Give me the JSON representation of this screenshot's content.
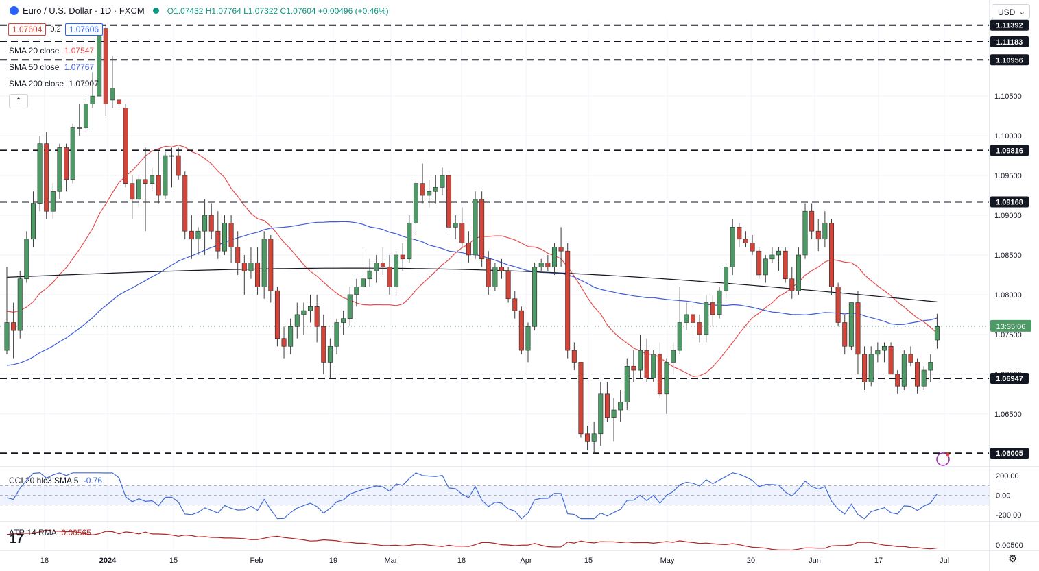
{
  "header": {
    "symbol_title": "Euro / U.S. Dollar · 1D · FXCM",
    "ohlc": "O1.07432 H1.07764 L1.07322 C1.07604 +0.00496 (+0.46%)",
    "bid": "1.07604",
    "spread": "0.2",
    "ask": "1.07606"
  },
  "legend": {
    "sma20_label": "SMA 20 close",
    "sma20_value": "1.07547",
    "sma50_label": "SMA 50 close",
    "sma50_value": "1.07767",
    "sma200_label": "SMA 200 close",
    "sma200_value": "1.07907",
    "collapse_icon": "chevron-up-icon"
  },
  "currency_selector": {
    "value": "USD"
  },
  "countdown": "13:35:06",
  "cci": {
    "label": "CCI 20 hlc3 SMA 5",
    "value": "-0.76",
    "ticks": [
      "200.00",
      "0.00",
      "-200.00"
    ]
  },
  "atr": {
    "label": "ATR 14 RMA",
    "value": "0.00565",
    "tick": "0.00500"
  },
  "colors": {
    "up": "#4e9a66",
    "down": "#d1453b",
    "sma20": "#e74c4c",
    "sma50": "#3b5bdb",
    "sma200": "#131722",
    "level": "#131722",
    "cci": "#3f6ad8",
    "atr": "#b22222"
  },
  "chart_data": {
    "type": "candlestick",
    "symbol": "EUR/USD",
    "timeframe": "1D",
    "ylim": [
      1.0586,
      1.1145
    ],
    "y_ticks": [
      "1.10500",
      "1.10000",
      "1.09500",
      "1.09000",
      "1.08500",
      "1.08000",
      "1.07500",
      "1.07000",
      "1.06500"
    ],
    "x_ticks": [
      "18",
      "2024",
      "15",
      "Feb",
      "19",
      "Mar",
      "18",
      "Apr",
      "15",
      "May",
      "20",
      "Jun",
      "17",
      "Jul"
    ],
    "horizontal_levels": [
      1.11392,
      1.11183,
      1.10956,
      1.09816,
      1.09168,
      1.06947,
      1.06005
    ],
    "level_labels": [
      "1.11392",
      "1.11183",
      "1.10956",
      "1.09816",
      "1.09168",
      "1.06947",
      "1.06005"
    ],
    "last_close": 1.07604,
    "candles": [
      [
        1.073,
        1.0835,
        1.0725,
        1.0765
      ],
      [
        1.0765,
        1.079,
        1.072,
        1.0755
      ],
      [
        1.0755,
        1.083,
        1.0745,
        1.082
      ],
      [
        1.082,
        1.088,
        1.0815,
        1.087
      ],
      [
        1.087,
        1.093,
        1.086,
        1.0915
      ],
      [
        1.0915,
        1.1,
        1.0905,
        1.099
      ],
      [
        1.099,
        1.1005,
        1.0895,
        1.0905
      ],
      [
        1.0905,
        1.094,
        1.0895,
        1.093
      ],
      [
        1.093,
        1.099,
        1.092,
        1.0985
      ],
      [
        1.0985,
        1.099,
        1.093,
        1.0945
      ],
      [
        1.0945,
        1.1015,
        1.094,
        1.101
      ],
      [
        1.101,
        1.104,
        1.1,
        1.101
      ],
      [
        1.101,
        1.105,
        1.1005,
        1.104
      ],
      [
        1.104,
        1.108,
        1.1035,
        1.105
      ],
      [
        1.105,
        1.114,
        1.105,
        1.1135
      ],
      [
        1.1135,
        1.114,
        1.1025,
        1.104
      ],
      [
        1.1045,
        1.11,
        1.1035,
        1.106
      ],
      [
        1.1045,
        1.1045,
        1.1035,
        1.104
      ],
      [
        1.1035,
        1.104,
        1.0935,
        1.094
      ],
      [
        1.094,
        1.095,
        1.0895,
        1.092
      ],
      [
        1.092,
        1.095,
        1.091,
        1.0945
      ],
      [
        1.0945,
        1.0985,
        1.088,
        1.094
      ],
      [
        1.094,
        1.096,
        1.093,
        1.095
      ],
      [
        1.095,
        1.098,
        1.0915,
        1.0925
      ],
      [
        1.0925,
        1.098,
        1.092,
        1.0975
      ],
      [
        1.0975,
        1.0985,
        1.0935,
        1.0975
      ],
      [
        1.0975,
        1.0985,
        1.0945,
        1.095
      ],
      [
        1.095,
        1.0955,
        1.087,
        1.088
      ],
      [
        1.088,
        1.09,
        1.0845,
        1.087
      ],
      [
        1.087,
        1.0885,
        1.085,
        1.088
      ],
      [
        1.088,
        1.092,
        1.085,
        1.09
      ],
      [
        1.09,
        1.0915,
        1.087,
        1.088
      ],
      [
        1.088,
        1.0905,
        1.0845,
        1.0855
      ],
      [
        1.0855,
        1.09,
        1.085,
        1.089
      ],
      [
        1.089,
        1.09,
        1.084,
        1.086
      ],
      [
        1.086,
        1.088,
        1.0825,
        1.084
      ],
      [
        1.084,
        1.085,
        1.08,
        1.083
      ],
      [
        1.083,
        1.086,
        1.082,
        1.084
      ],
      [
        1.084,
        1.086,
        1.08,
        1.081
      ],
      [
        1.081,
        1.088,
        1.0795,
        1.087
      ],
      [
        1.087,
        1.0875,
        1.079,
        1.0805
      ],
      [
        1.0805,
        1.081,
        1.0735,
        1.0745
      ],
      [
        1.0745,
        1.076,
        1.072,
        1.0735
      ],
      [
        1.0735,
        1.077,
        1.0725,
        1.076
      ],
      [
        1.076,
        1.079,
        1.0745,
        1.0775
      ],
      [
        1.0775,
        1.079,
        1.075,
        1.078
      ],
      [
        1.078,
        1.08,
        1.0765,
        1.0785
      ],
      [
        1.0785,
        1.08,
        1.074,
        1.076
      ],
      [
        1.076,
        1.0775,
        1.07,
        1.0715
      ],
      [
        1.0715,
        1.0745,
        1.0695,
        1.0735
      ],
      [
        1.0735,
        1.077,
        1.0725,
        1.0765
      ],
      [
        1.0765,
        1.078,
        1.075,
        1.077
      ],
      [
        1.077,
        1.081,
        1.076,
        1.08
      ],
      [
        1.08,
        1.082,
        1.0785,
        1.081
      ],
      [
        1.081,
        1.086,
        1.0805,
        1.082
      ],
      [
        1.082,
        1.0845,
        1.081,
        1.083
      ],
      [
        1.083,
        1.085,
        1.0815,
        1.084
      ],
      [
        1.084,
        1.086,
        1.0825,
        1.0835
      ],
      [
        1.0835,
        1.085,
        1.08,
        1.081
      ],
      [
        1.081,
        1.0855,
        1.08,
        1.085
      ],
      [
        1.085,
        1.0865,
        1.083,
        1.0845
      ],
      [
        1.0845,
        1.09,
        1.084,
        1.089
      ],
      [
        1.089,
        1.0945,
        1.0875,
        1.094
      ],
      [
        1.094,
        1.0965,
        1.0915,
        1.0925
      ],
      [
        1.0925,
        1.0945,
        1.091,
        1.093
      ],
      [
        1.093,
        1.095,
        1.0915,
        1.0935
      ],
      [
        1.0935,
        1.096,
        1.0925,
        1.095
      ],
      [
        1.095,
        1.0955,
        1.088,
        1.0885
      ],
      [
        1.0885,
        1.09,
        1.087,
        1.089
      ],
      [
        1.089,
        1.091,
        1.086,
        1.0865
      ],
      [
        1.0865,
        1.088,
        1.084,
        1.085
      ],
      [
        1.085,
        1.093,
        1.0845,
        1.092
      ],
      [
        1.092,
        1.093,
        1.0835,
        1.0845
      ],
      [
        1.0845,
        1.0855,
        1.08,
        1.081
      ],
      [
        1.081,
        1.084,
        1.0805,
        1.0835
      ],
      [
        1.0835,
        1.0845,
        1.082,
        1.083
      ],
      [
        1.083,
        1.0835,
        1.079,
        1.0795
      ],
      [
        1.0795,
        1.0805,
        1.077,
        1.078
      ],
      [
        1.078,
        1.0785,
        1.0725,
        1.073
      ],
      [
        1.073,
        1.0765,
        1.0715,
        1.076
      ],
      [
        1.076,
        1.084,
        1.0755,
        1.0835
      ],
      [
        1.0835,
        1.0845,
        1.083,
        1.084
      ],
      [
        1.084,
        1.085,
        1.083,
        1.0835
      ],
      [
        1.0835,
        1.0865,
        1.0825,
        1.086
      ],
      [
        1.086,
        1.0885,
        1.0835,
        1.0855
      ],
      [
        1.0855,
        1.0865,
        1.072,
        1.073
      ],
      [
        1.073,
        1.074,
        1.0705,
        1.0715
      ],
      [
        1.0715,
        1.0715,
        1.062,
        1.0625
      ],
      [
        1.0625,
        1.0635,
        1.0605,
        1.0615
      ],
      [
        1.0615,
        1.064,
        1.06,
        1.0625
      ],
      [
        1.0625,
        1.069,
        1.061,
        1.0675
      ],
      [
        1.0675,
        1.069,
        1.064,
        1.0645
      ],
      [
        1.0645,
        1.067,
        1.0615,
        1.0655
      ],
      [
        1.0655,
        1.068,
        1.064,
        1.0665
      ],
      [
        1.0665,
        1.072,
        1.0655,
        1.071
      ],
      [
        1.071,
        1.073,
        1.069,
        1.0705
      ],
      [
        1.0705,
        1.075,
        1.0695,
        1.073
      ],
      [
        1.073,
        1.0745,
        1.069,
        1.0695
      ],
      [
        1.0695,
        1.073,
        1.069,
        1.0725
      ],
      [
        1.0725,
        1.074,
        1.067,
        1.0675
      ],
      [
        1.0675,
        1.072,
        1.065,
        1.0715
      ],
      [
        1.0715,
        1.074,
        1.07,
        1.073
      ],
      [
        1.073,
        1.081,
        1.0725,
        1.0765
      ],
      [
        1.0765,
        1.079,
        1.0755,
        1.0775
      ],
      [
        1.0775,
        1.0785,
        1.0745,
        1.0765
      ],
      [
        1.0765,
        1.0775,
        1.074,
        1.075
      ],
      [
        1.075,
        1.08,
        1.074,
        1.079
      ],
      [
        1.079,
        1.08,
        1.076,
        1.0775
      ],
      [
        1.0775,
        1.081,
        1.077,
        1.0805
      ],
      [
        1.0805,
        1.084,
        1.0795,
        1.0835
      ],
      [
        1.0835,
        1.0895,
        1.0825,
        1.0885
      ],
      [
        1.0885,
        1.089,
        1.086,
        1.087
      ],
      [
        1.087,
        1.088,
        1.086,
        1.0865
      ],
      [
        1.0865,
        1.0875,
        1.085,
        1.0855
      ],
      [
        1.0855,
        1.086,
        1.082,
        1.0825
      ],
      [
        1.0825,
        1.085,
        1.0815,
        1.0845
      ],
      [
        1.0845,
        1.086,
        1.084,
        1.085
      ],
      [
        1.085,
        1.086,
        1.083,
        1.0855
      ],
      [
        1.0855,
        1.086,
        1.0815,
        1.082
      ],
      [
        1.082,
        1.0835,
        1.0795,
        1.0805
      ],
      [
        1.0805,
        1.086,
        1.08,
        1.085
      ],
      [
        1.085,
        1.0915,
        1.0845,
        1.0905
      ],
      [
        1.0905,
        1.0915,
        1.087,
        1.088
      ],
      [
        1.088,
        1.0895,
        1.0855,
        1.087
      ],
      [
        1.087,
        1.0905,
        1.086,
        1.089
      ],
      [
        1.089,
        1.0895,
        1.08,
        1.081
      ],
      [
        1.081,
        1.0815,
        1.076,
        1.0765
      ],
      [
        1.0765,
        1.0775,
        1.0725,
        1.0735
      ],
      [
        1.0735,
        1.079,
        1.073,
        1.079
      ],
      [
        1.079,
        1.0805,
        1.07,
        1.0725
      ],
      [
        1.0725,
        1.0735,
        1.068,
        1.069
      ],
      [
        1.069,
        1.0735,
        1.0685,
        1.0725
      ],
      [
        1.0725,
        1.074,
        1.0715,
        1.073
      ],
      [
        1.073,
        1.074,
        1.0715,
        1.0735
      ],
      [
        1.0735,
        1.074,
        1.07,
        1.07
      ],
      [
        1.07,
        1.0705,
        1.0675,
        1.0685
      ],
      [
        1.0685,
        1.073,
        1.068,
        1.0725
      ],
      [
        1.0725,
        1.0735,
        1.071,
        1.0715
      ],
      [
        1.0715,
        1.072,
        1.0675,
        1.0685
      ],
      [
        1.0685,
        1.071,
        1.068,
        1.0705
      ],
      [
        1.0705,
        1.0725,
        1.069,
        1.0715
      ],
      [
        1.0743,
        1.0776,
        1.0732,
        1.076
      ]
    ]
  }
}
